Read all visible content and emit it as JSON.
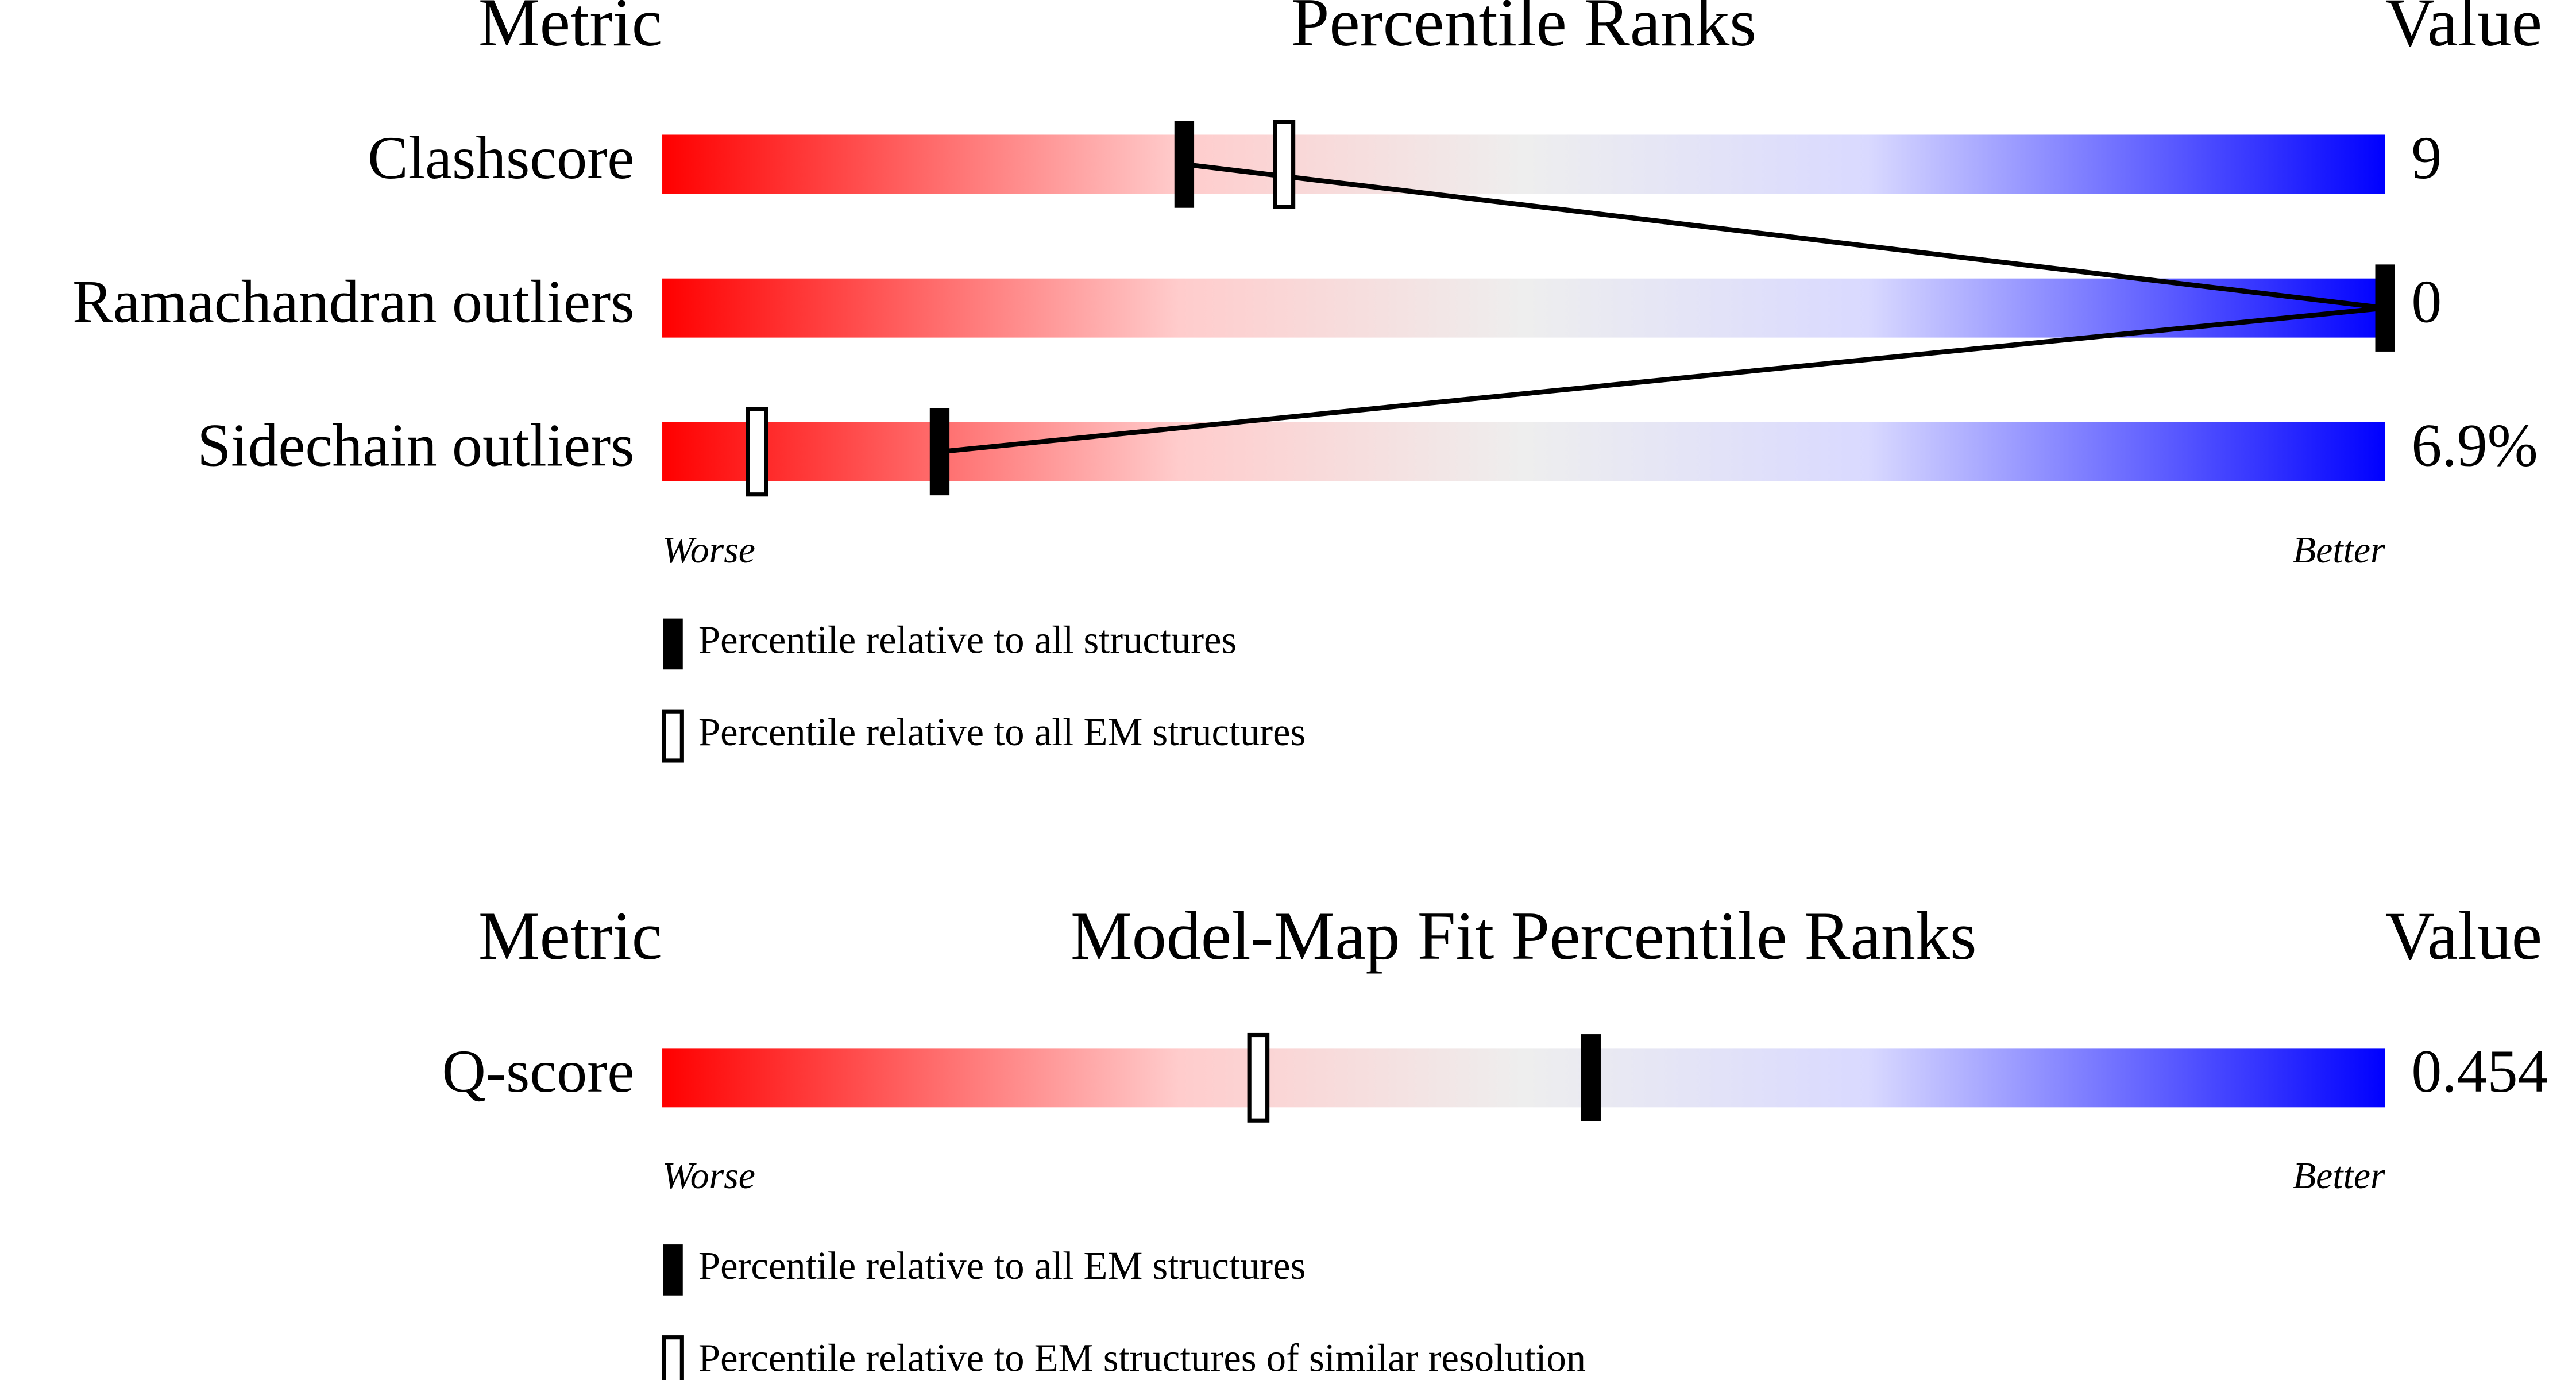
{
  "chart_data": [
    {
      "type": "slider",
      "metric_header": "Metric",
      "title": "Percentile Ranks",
      "value_header": "Value",
      "xlim": [
        0,
        100
      ],
      "low_label": "Worse",
      "high_label": "Better",
      "categories": [
        "Clashscore",
        "Ramachandran outliers",
        "Sidechain outliers"
      ],
      "metric_values": [
        "9",
        "0",
        "6.9%"
      ],
      "connect_series": 0,
      "series": [
        {
          "name": "Percentile relative to all structures",
          "color": "#000000",
          "filled": true,
          "values": [
            30.3,
            100,
            16.1
          ]
        },
        {
          "name": "Percentile relative to all EM structures",
          "color": "#000000",
          "filled": false,
          "values": [
            36.1,
            null,
            5.5
          ]
        }
      ]
    },
    {
      "type": "slider",
      "metric_header": "Metric",
      "title": "Model-Map Fit Percentile Ranks",
      "value_header": "Value",
      "xlim": [
        0,
        100
      ],
      "low_label": "Worse",
      "high_label": "Better",
      "categories": [
        "Q-score"
      ],
      "metric_values": [
        "0.454"
      ],
      "connect_series": 0,
      "series": [
        {
          "name": "Percentile relative to all EM structures",
          "color": "#000000",
          "filled": true,
          "values": [
            53.9
          ]
        },
        {
          "name": "Percentile relative to EM structures of similar resolution",
          "color": "#000000",
          "filled": false,
          "values": [
            34.6
          ]
        }
      ]
    }
  ]
}
